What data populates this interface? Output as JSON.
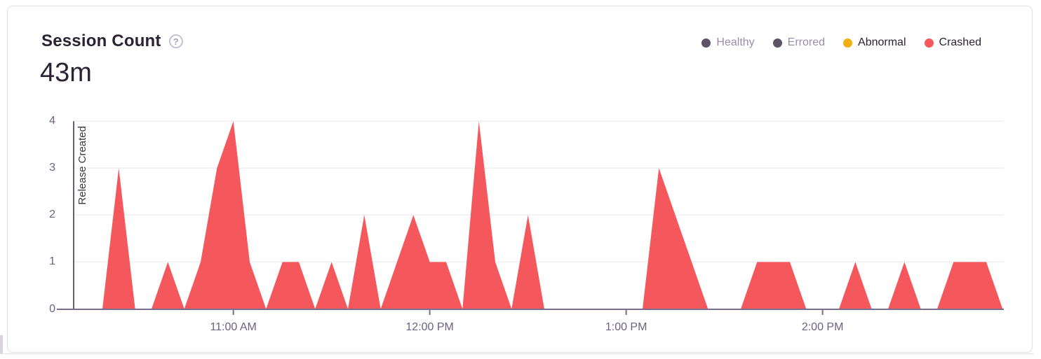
{
  "card": {
    "title": "Session Count",
    "help_icon": "?",
    "total": "43m"
  },
  "legend": {
    "items": [
      {
        "label": "Healthy",
        "color": "#5c5365",
        "muted": true
      },
      {
        "label": "Errored",
        "color": "#5c5365",
        "muted": true
      },
      {
        "label": "Abnormal",
        "color": "#f0b00f",
        "muted": false
      },
      {
        "label": "Crashed",
        "color": "#f4585c",
        "muted": false
      }
    ]
  },
  "chart_data": {
    "type": "area",
    "title": "Session Count",
    "ylabel": "",
    "xlabel": "",
    "ylim": [
      0,
      4
    ],
    "y_ticks": [
      0,
      1,
      2,
      3,
      4
    ],
    "x_ticks": [
      "11:00 AM",
      "12:00 PM",
      "1:00 PM",
      "2:00 PM"
    ],
    "grid": "horizontal",
    "legend_position": "top-right",
    "annotation": {
      "label": "Release Created",
      "position": "left-edge"
    },
    "series": [
      {
        "name": "Crashed",
        "color": "#f4585c",
        "times": [
          "10:20 AM",
          "10:25 AM",
          "10:30 AM",
          "10:35 AM",
          "10:40 AM",
          "10:45 AM",
          "10:50 AM",
          "10:55 AM",
          "11:00 AM",
          "11:05 AM",
          "11:10 AM",
          "11:15 AM",
          "11:20 AM",
          "11:25 AM",
          "11:30 AM",
          "11:35 AM",
          "11:40 AM",
          "11:45 AM",
          "11:50 AM",
          "11:55 AM",
          "12:00 PM",
          "12:05 PM",
          "12:10 PM",
          "12:15 PM",
          "12:20 PM",
          "12:25 PM",
          "12:30 PM",
          "12:35 PM",
          "12:40 PM",
          "12:45 PM",
          "12:50 PM",
          "12:55 PM",
          "1:00 PM",
          "1:05 PM",
          "1:10 PM",
          "1:15 PM",
          "1:20 PM",
          "1:25 PM",
          "1:30 PM",
          "1:35 PM",
          "1:40 PM",
          "1:45 PM",
          "1:50 PM",
          "1:55 PM",
          "2:00 PM",
          "2:05 PM",
          "2:10 PM",
          "2:15 PM",
          "2:20 PM",
          "2:25 PM",
          "2:30 PM",
          "2:35 PM",
          "2:40 PM",
          "2:45 PM",
          "2:50 PM",
          "2:55 PM"
        ],
        "values": [
          0,
          3,
          0,
          0,
          1,
          0,
          1,
          3,
          4,
          1,
          0,
          1,
          1,
          0,
          1,
          0,
          2,
          0,
          1,
          2,
          1,
          1,
          0,
          4,
          1,
          0,
          2,
          0,
          0,
          0,
          0,
          0,
          0,
          0,
          3,
          2,
          1,
          0,
          0,
          0,
          1,
          1,
          1,
          0,
          0,
          0,
          1,
          0,
          0,
          1,
          0,
          0,
          1,
          1,
          1,
          0
        ]
      }
    ]
  }
}
